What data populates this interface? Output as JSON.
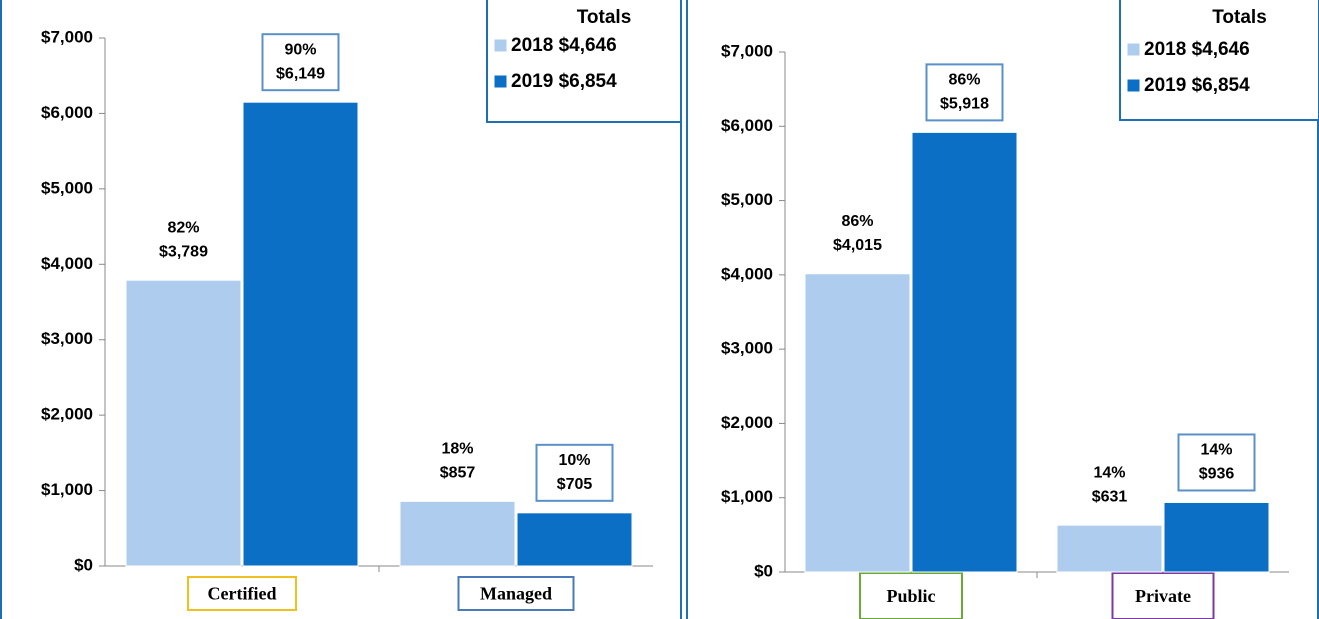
{
  "chart_data": [
    {
      "type": "bar",
      "categories": [
        "Certified",
        "Managed"
      ],
      "category_colors": [
        "#f0c020",
        "#4a7ab8"
      ],
      "legend_title": "Totals",
      "ylim": [
        0,
        7000
      ],
      "yticks": [
        {
          "value": 0,
          "label": "$0"
        },
        {
          "value": 1000,
          "label": "$1,000"
        },
        {
          "value": 2000,
          "label": "$2,000"
        },
        {
          "value": 3000,
          "label": "$3,000"
        },
        {
          "value": 4000,
          "label": "$4,000"
        },
        {
          "value": 5000,
          "label": "$5,000"
        },
        {
          "value": 6000,
          "label": "$6,000"
        },
        {
          "value": 7000,
          "label": "$7,000"
        }
      ],
      "series": [
        {
          "name": "2018",
          "total_label": "$4,646",
          "color": "#aecdee",
          "values": [
            3789,
            857
          ],
          "value_labels": [
            "$3,789",
            "$857"
          ],
          "share_labels": [
            "82%",
            "18%"
          ]
        },
        {
          "name": "2019",
          "total_label": "$6,854",
          "color": "#0b6fc6",
          "values": [
            6149,
            705
          ],
          "value_labels": [
            "$6,149",
            "$705"
          ],
          "share_labels": [
            "90%",
            "10%"
          ]
        }
      ]
    },
    {
      "type": "bar",
      "categories": [
        "Public",
        "Private"
      ],
      "category_colors": [
        "#6aaa3a",
        "#7a3aa0"
      ],
      "legend_title": "Totals",
      "ylim": [
        0,
        7000
      ],
      "yticks": [
        {
          "value": 0,
          "label": "$0"
        },
        {
          "value": 1000,
          "label": "$1,000"
        },
        {
          "value": 2000,
          "label": "$2,000"
        },
        {
          "value": 3000,
          "label": "$3,000"
        },
        {
          "value": 4000,
          "label": "$4,000"
        },
        {
          "value": 5000,
          "label": "$5,000"
        },
        {
          "value": 6000,
          "label": "$6,000"
        },
        {
          "value": 7000,
          "label": "$7,000"
        }
      ],
      "series": [
        {
          "name": "2018",
          "total_label": "$4,646",
          "color": "#aecdee",
          "values": [
            4015,
            631
          ],
          "value_labels": [
            "$4,015",
            "$631"
          ],
          "share_labels": [
            "86%",
            "14%"
          ]
        },
        {
          "name": "2019",
          "total_label": "$6,854",
          "color": "#0b6fc6",
          "values": [
            5918,
            936
          ],
          "value_labels": [
            "$5,918",
            "$936"
          ],
          "share_labels": [
            "86%",
            "14%"
          ]
        }
      ]
    }
  ]
}
